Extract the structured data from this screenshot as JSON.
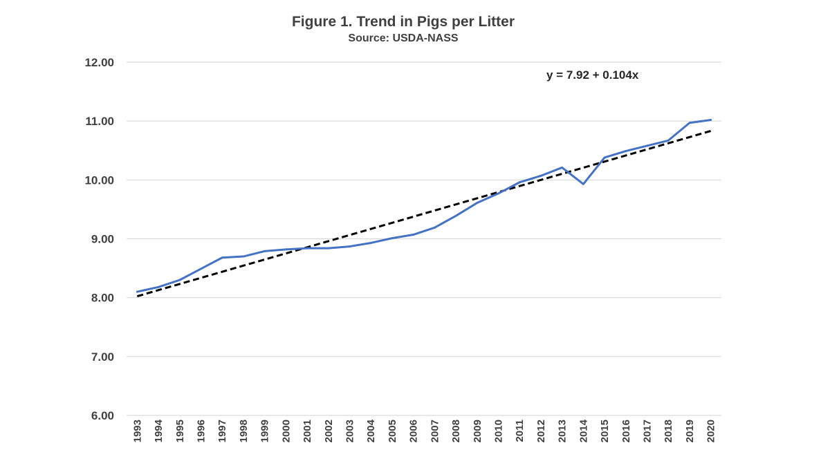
{
  "chart_data": {
    "type": "line",
    "title": "Figure 1.  Trend in Pigs per Litter",
    "subtitle": "Source: USDA-NASS",
    "xlabel": "",
    "ylabel": "",
    "ylim": [
      6,
      12
    ],
    "yticks": [
      "6.00",
      "7.00",
      "8.00",
      "9.00",
      "10.00",
      "11.00",
      "12.00"
    ],
    "grid": true,
    "categories": [
      "1993",
      "1994",
      "1995",
      "1996",
      "1997",
      "1998",
      "1999",
      "2000",
      "2001",
      "2002",
      "2003",
      "2004",
      "2005",
      "2006",
      "2007",
      "2008",
      "2009",
      "2010",
      "2011",
      "2012",
      "2013",
      "2014",
      "2015",
      "2016",
      "2017",
      "2018",
      "2019",
      "2020"
    ],
    "series": [
      {
        "values": [
          8.1,
          8.18,
          8.3,
          8.49,
          8.68,
          8.7,
          8.79,
          8.82,
          8.84,
          8.84,
          8.87,
          8.93,
          9.01,
          9.07,
          9.19,
          9.39,
          9.61,
          9.77,
          9.96,
          10.07,
          10.21,
          9.93,
          10.38,
          10.49,
          10.58,
          10.67,
          10.97,
          11.02
        ],
        "color": "#4472C4"
      }
    ],
    "trendline": {
      "intercept": 7.92,
      "slope": 0.104,
      "style": "dashed",
      "color": "#000000",
      "label": "y = 7.92 + 0.104x"
    }
  }
}
